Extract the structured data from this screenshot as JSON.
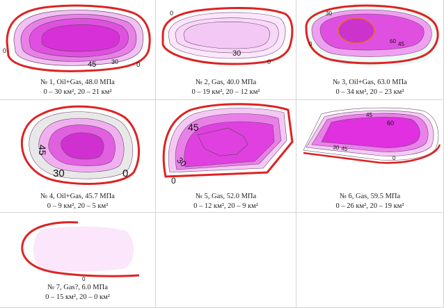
{
  "panels": [
    {
      "line1": "№ 1, Oil+Gas, 48.0 МПа",
      "line2": "0 – 30 км², 20 – 21 км²",
      "contour_labels": [
        "0",
        "45",
        "30",
        "0"
      ]
    },
    {
      "line1": "№ 2, Gas, 40.0 МПа",
      "line2": "0 – 19 км², 20 – 12 км²",
      "contour_labels": [
        "0",
        "30",
        "0"
      ]
    },
    {
      "line1": "№ 3, Oil+Gas, 63.0 МПа",
      "line2": "0 – 34 км², 20 – 23 км²",
      "contour_labels": [
        "30",
        "60",
        "45",
        "0"
      ]
    },
    {
      "line1": "№ 4, Oil+Gas, 45.7 МПа",
      "line2": "0 – 9 км², 20 – 5 км²",
      "contour_labels": [
        "45",
        "30",
        "0"
      ]
    },
    {
      "line1": "№ 5, Gas, 52.0 МПа",
      "line2": "0 – 12 км², 20 – 9 км²",
      "contour_labels": [
        "45",
        "30",
        "0"
      ]
    },
    {
      "line1": "№ 6, Gas, 59.5 МПа",
      "line2": "0 – 26 км², 20 – 19 км²",
      "contour_labels": [
        "45",
        "60",
        "30",
        "45",
        "0"
      ]
    },
    {
      "line1": "№ 7, Gas?, 6.0 МПа",
      "line2": "0 – 15 км², 20 – 0 км²",
      "contour_labels": [
        "0"
      ]
    }
  ],
  "colors": {
    "boundary": "#dd2222",
    "fill_dark": "#e040e0",
    "fill_light": "#f8d8f8",
    "contour": "#6a4a6a"
  }
}
